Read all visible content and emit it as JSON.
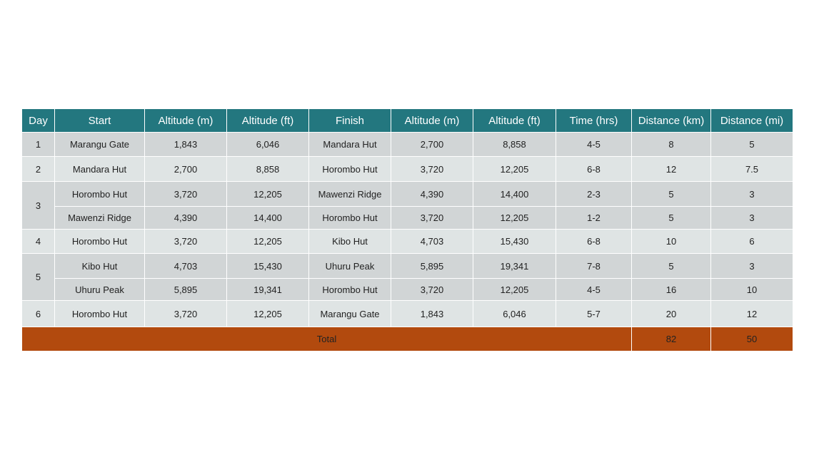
{
  "headers": [
    "Day",
    "Start",
    "Altitude (m)",
    "Altitude (ft)",
    "Finish",
    "Altitude (m)",
    "Altitude (ft)",
    "Time (hrs)",
    "Distance (km)",
    "Distance (mi)"
  ],
  "rows": [
    {
      "day": "1",
      "segments": [
        {
          "start": "Marangu Gate",
          "start_alt_m": "1,843",
          "start_alt_ft": "6,046",
          "finish": "Mandara Hut",
          "finish_alt_m": "2,700",
          "finish_alt_ft": "8,858",
          "time": "4-5",
          "dist_km": "8",
          "dist_mi": "5"
        }
      ]
    },
    {
      "day": "2",
      "segments": [
        {
          "start": "Mandara Hut",
          "start_alt_m": "2,700",
          "start_alt_ft": "8,858",
          "finish": "Horombo Hut",
          "finish_alt_m": "3,720",
          "finish_alt_ft": "12,205",
          "time": "6-8",
          "dist_km": "12",
          "dist_mi": "7.5"
        }
      ]
    },
    {
      "day": "3",
      "segments": [
        {
          "start": "Horombo Hut",
          "start_alt_m": "3,720",
          "start_alt_ft": "12,205",
          "finish": "Mawenzi Ridge",
          "finish_alt_m": "4,390",
          "finish_alt_ft": "14,400",
          "time": "2-3",
          "dist_km": "5",
          "dist_mi": "3"
        },
        {
          "start": "Mawenzi Ridge",
          "start_alt_m": "4,390",
          "start_alt_ft": "14,400",
          "finish": "Horombo Hut",
          "finish_alt_m": "3,720",
          "finish_alt_ft": "12,205",
          "time": "1-2",
          "dist_km": "5",
          "dist_mi": "3"
        }
      ]
    },
    {
      "day": "4",
      "segments": [
        {
          "start": "Horombo Hut",
          "start_alt_m": "3,720",
          "start_alt_ft": "12,205",
          "finish": "Kibo Hut",
          "finish_alt_m": "4,703",
          "finish_alt_ft": "15,430",
          "time": "6-8",
          "dist_km": "10",
          "dist_mi": "6"
        }
      ]
    },
    {
      "day": "5",
      "segments": [
        {
          "start": "Kibo Hut",
          "start_alt_m": "4,703",
          "start_alt_ft": "15,430",
          "finish": "Uhuru Peak",
          "finish_alt_m": "5,895",
          "finish_alt_ft": "19,341",
          "time": "7-8",
          "dist_km": "5",
          "dist_mi": "3"
        },
        {
          "start": "Uhuru Peak",
          "start_alt_m": "5,895",
          "start_alt_ft": "19,341",
          "finish": "Horombo Hut",
          "finish_alt_m": "3,720",
          "finish_alt_ft": "12,205",
          "time": "4-5",
          "dist_km": "16",
          "dist_mi": "10"
        }
      ]
    },
    {
      "day": "6",
      "segments": [
        {
          "start": "Horombo Hut",
          "start_alt_m": "3,720",
          "start_alt_ft": "12,205",
          "finish": "Marangu Gate",
          "finish_alt_m": "1,843",
          "finish_alt_ft": "6,046",
          "time": "5-7",
          "dist_km": "20",
          "dist_mi": "12"
        }
      ]
    }
  ],
  "total": {
    "label": "Total",
    "dist_km": "82",
    "dist_mi": "50"
  },
  "colors": {
    "header": "#23777f",
    "row_dark": "#d1d5d6",
    "row_light": "#dfe4e4",
    "total": "#b24a0e"
  }
}
